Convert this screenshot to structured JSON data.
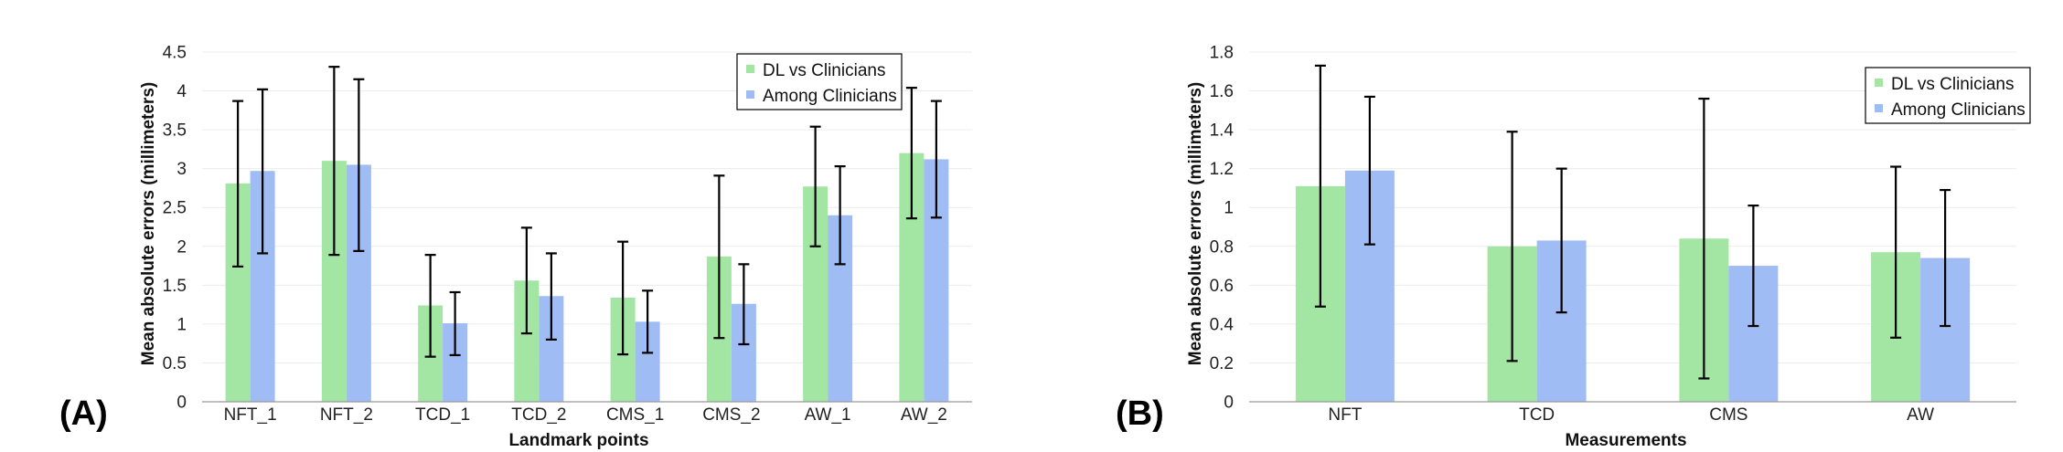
{
  "chart_data": [
    {
      "type": "bar",
      "panel_label": "(A)",
      "categories": [
        "NFT_1",
        "NFT_2",
        "TCD_1",
        "TCD_2",
        "CMS_1",
        "CMS_2",
        "AW_1",
        "AW_2"
      ],
      "series": [
        {
          "name": "DL vs Clinicians",
          "color": "#a3e6a3",
          "values": [
            2.81,
            3.1,
            1.24,
            1.56,
            1.34,
            1.87,
            2.77,
            3.2
          ],
          "err_low": [
            1.74,
            1.89,
            0.58,
            0.88,
            0.61,
            0.82,
            2.0,
            2.36
          ],
          "err_high": [
            3.87,
            4.31,
            1.89,
            2.24,
            2.06,
            2.91,
            3.54,
            4.04
          ]
        },
        {
          "name": "Among Clinicians",
          "color": "#a0bcf5",
          "values": [
            2.97,
            3.05,
            1.01,
            1.36,
            1.03,
            1.26,
            2.4,
            3.12
          ],
          "err_low": [
            1.91,
            1.94,
            0.6,
            0.8,
            0.63,
            0.74,
            1.77,
            2.37
          ],
          "err_high": [
            4.02,
            4.15,
            1.41,
            1.91,
            1.43,
            1.77,
            3.03,
            3.87
          ]
        }
      ],
      "xlabel": "Landmark points",
      "ylabel": "Mean absolute errors (millimeters)",
      "ylim": [
        0,
        4.5
      ],
      "yticks": [
        "0",
        "0.5",
        "1",
        "1.5",
        "2",
        "2.5",
        "3",
        "3.5",
        "4",
        "4.5"
      ],
      "grid": true,
      "legend_position": "top-right"
    },
    {
      "type": "bar",
      "panel_label": "(B)",
      "categories": [
        "NFT",
        "TCD",
        "CMS",
        "AW"
      ],
      "series": [
        {
          "name": "DL vs Clinicians",
          "color": "#a3e6a3",
          "values": [
            1.11,
            0.8,
            0.84,
            0.77
          ],
          "err_low": [
            0.49,
            0.21,
            0.12,
            0.33
          ],
          "err_high": [
            1.73,
            1.39,
            1.56,
            1.21
          ]
        },
        {
          "name": "Among Clinicians",
          "color": "#a0bcf5",
          "values": [
            1.19,
            0.83,
            0.7,
            0.74
          ],
          "err_low": [
            0.81,
            0.46,
            0.39,
            0.39
          ],
          "err_high": [
            1.57,
            1.2,
            1.01,
            1.09
          ]
        }
      ],
      "xlabel": "Measurements",
      "ylabel": "Mean absolute errors (millimeters)",
      "ylim": [
        0,
        1.8
      ],
      "yticks": [
        "0",
        "0.2",
        "0.4",
        "0.6",
        "0.8",
        "1",
        "1.2",
        "1.4",
        "1.6",
        "1.8"
      ],
      "grid": true,
      "legend_position": "top-right"
    }
  ]
}
